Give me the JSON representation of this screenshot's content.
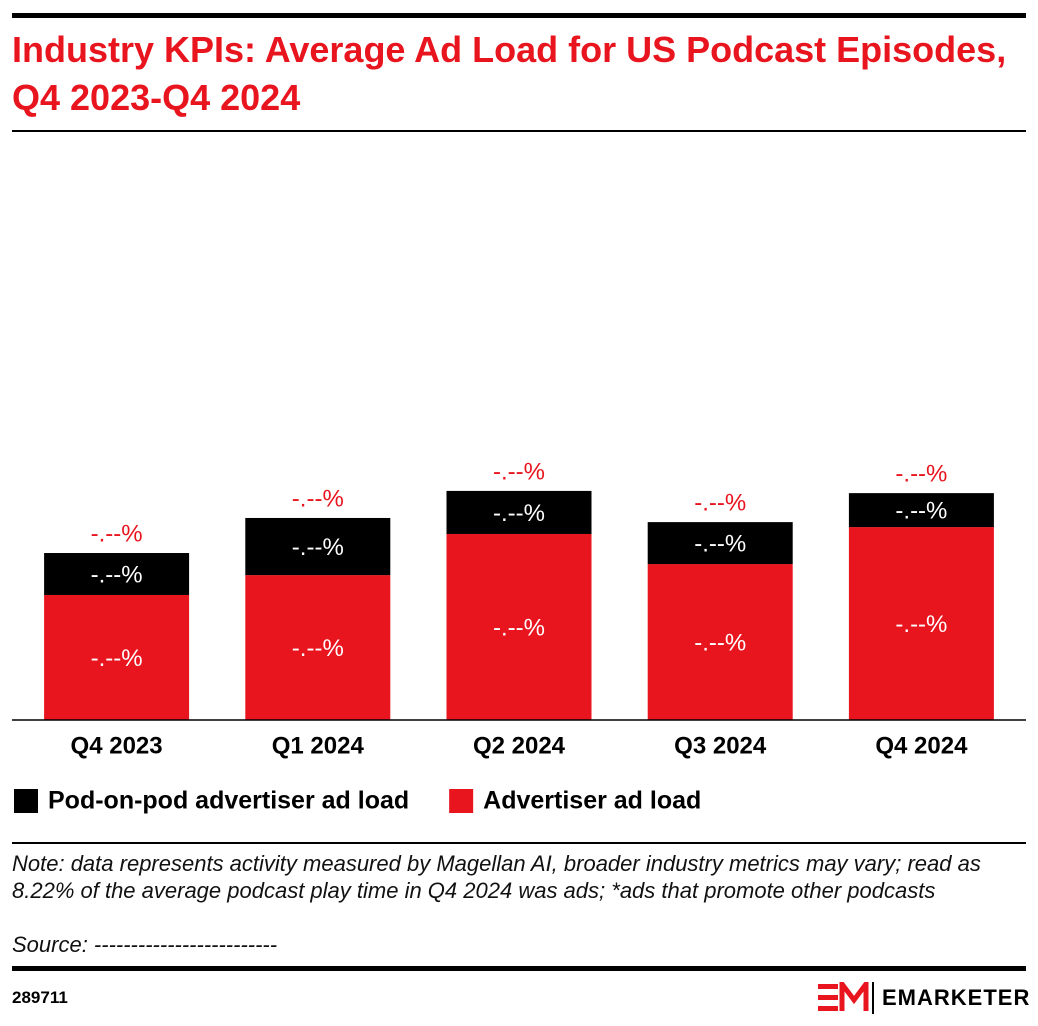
{
  "chart_data": {
    "type": "stacked-bar",
    "title": "Industry KPIs: Average Ad Load for US Podcast Episodes, Q4 2023-Q4 2024",
    "categories": [
      "Q4 2023",
      "Q1 2024",
      "Q2 2024",
      "Q3 2024",
      "Q4 2024"
    ],
    "series": [
      {
        "name": "Advertiser ad load",
        "color": "#e8141e",
        "values": [
          4.53,
          5.25,
          6.74,
          5.65,
          6.99
        ],
        "value_labels": [
          "-.--%",
          "-.--%",
          "-.--%",
          "-.--%",
          "-.--%"
        ]
      },
      {
        "name": "Pod-on-pod advertiser ad load",
        "color": "#000000",
        "values": [
          1.52,
          2.07,
          1.56,
          1.52,
          1.23
        ],
        "value_labels": [
          "-.--%",
          "-.--%",
          "-.--%",
          "-.--%",
          "-.--%"
        ]
      }
    ],
    "total_labels": [
      "-.--%",
      "-.--%",
      "-.--%",
      "-.--%",
      "-.--%"
    ],
    "ylim": [
      0,
      10
    ],
    "legend": "bottom-left",
    "note": "Note: data represents activity measured by Magellan AI, broader industry metrics may vary; read as 8.22% of the average podcast play time in Q4 2024 was ads; *ads that promote other podcasts",
    "source": "Source: -------------------------",
    "chart_id": "289711",
    "brand": "EMARKETER"
  }
}
